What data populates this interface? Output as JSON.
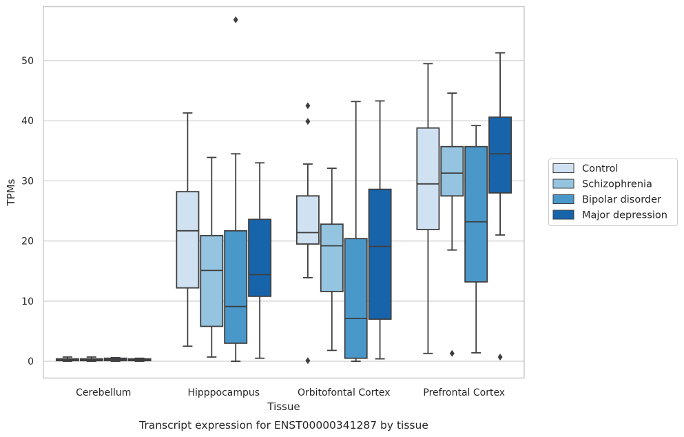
{
  "caption": "Transcript expression for ENST00000341287 by tissue",
  "chart_data": {
    "type": "box",
    "xlabel": "Tissue",
    "ylabel": "TPMs",
    "ylim": [
      -2.8,
      59.0
    ],
    "yticks": [
      0,
      10,
      20,
      30,
      40,
      50
    ],
    "grid": "horizontal",
    "legend_position": "right",
    "categories": [
      "Cerebellum",
      "Hipppocampus",
      "Orbitofontal Cortex",
      "Prefrontal Cortex"
    ],
    "series": [
      {
        "name": "Control",
        "color": "#d0e1f2",
        "boxes": [
          {
            "whisker_low": 0.0,
            "q1": 0.1,
            "median": 0.2,
            "q3": 0.4,
            "whisker_high": 0.7,
            "outliers": []
          },
          {
            "whisker_low": 2.5,
            "q1": 12.2,
            "median": 21.7,
            "q3": 28.2,
            "whisker_high": 41.3,
            "outliers": []
          },
          {
            "whisker_low": 13.9,
            "q1": 19.5,
            "median": 21.4,
            "q3": 27.5,
            "whisker_high": 32.8,
            "outliers": [
              42.5,
              39.9,
              0.1
            ]
          },
          {
            "whisker_low": 1.3,
            "q1": 21.9,
            "median": 29.5,
            "q3": 38.8,
            "whisker_high": 49.5,
            "outliers": []
          }
        ]
      },
      {
        "name": "Schizophrenia",
        "color": "#94c4df",
        "boxes": [
          {
            "whisker_low": 0.0,
            "q1": 0.1,
            "median": 0.2,
            "q3": 0.4,
            "whisker_high": 0.7,
            "outliers": []
          },
          {
            "whisker_low": 0.7,
            "q1": 5.8,
            "median": 15.1,
            "q3": 20.9,
            "whisker_high": 33.9,
            "outliers": []
          },
          {
            "whisker_low": 1.8,
            "q1": 11.6,
            "median": 19.2,
            "q3": 22.8,
            "whisker_high": 32.1,
            "outliers": []
          },
          {
            "whisker_low": 18.5,
            "q1": 27.5,
            "median": 31.3,
            "q3": 35.7,
            "whisker_high": 44.6,
            "outliers": [
              1.3
            ]
          }
        ]
      },
      {
        "name": "Bipolar disorder",
        "color": "#4a98c9",
        "boxes": [
          {
            "whisker_low": 0.0,
            "q1": 0.1,
            "median": 0.3,
            "q3": 0.5,
            "whisker_high": 0.6,
            "outliers": []
          },
          {
            "whisker_low": 0.0,
            "q1": 3.0,
            "median": 9.1,
            "q3": 21.7,
            "whisker_high": 34.5,
            "outliers": [
              56.8
            ]
          },
          {
            "whisker_low": 0.0,
            "q1": 0.5,
            "median": 7.1,
            "q3": 20.4,
            "whisker_high": 43.2,
            "outliers": []
          },
          {
            "whisker_low": 1.4,
            "q1": 13.2,
            "median": 23.2,
            "q3": 35.7,
            "whisker_high": 39.2,
            "outliers": []
          }
        ]
      },
      {
        "name": "Major depression",
        "color": "#1764ab",
        "boxes": [
          {
            "whisker_low": 0.0,
            "q1": 0.1,
            "median": 0.2,
            "q3": 0.4,
            "whisker_high": 0.5,
            "outliers": []
          },
          {
            "whisker_low": 0.5,
            "q1": 10.8,
            "median": 14.4,
            "q3": 23.6,
            "whisker_high": 33.0,
            "outliers": []
          },
          {
            "whisker_low": 0.4,
            "q1": 7.0,
            "median": 19.1,
            "q3": 28.6,
            "whisker_high": 43.3,
            "outliers": []
          },
          {
            "whisker_low": 21.0,
            "q1": 28.0,
            "median": 34.5,
            "q3": 40.6,
            "whisker_high": 51.3,
            "outliers": [
              0.7
            ]
          }
        ]
      }
    ]
  }
}
